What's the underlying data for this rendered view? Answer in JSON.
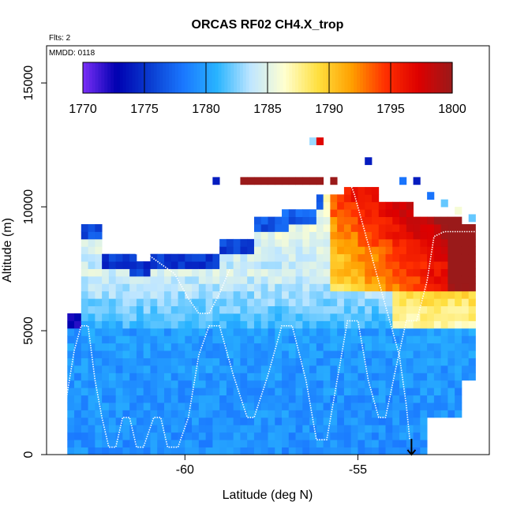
{
  "chart_data": {
    "type": "heatmap",
    "title": "ORCAS RF02 CH4.X_trop",
    "subtitle_flights": "Flts: 2",
    "subtitle_date": "MMDD: 0118",
    "xlabel": "Latitude (deg N)",
    "ylabel": "Altitude (m)",
    "xlim": [
      -64,
      -51.2
    ],
    "ylim": [
      0,
      16500
    ],
    "x_ticks": [
      -60,
      -55
    ],
    "x_tick_labels": [
      "-60",
      "-55"
    ],
    "y_ticks": [
      0,
      5000,
      10000,
      15000
    ],
    "y_tick_labels": [
      "0",
      "5000",
      "10000",
      "15000"
    ],
    "colorbar": {
      "range": [
        1770,
        1800
      ],
      "ticks": [
        1770,
        1775,
        1780,
        1785,
        1790,
        1795,
        1800
      ],
      "tick_labels": [
        "1770",
        "1775",
        "1780",
        "1785",
        "1790",
        "1795",
        "1800"
      ],
      "colors": [
        "#7b2ff7",
        "#0000b0",
        "#0a3cd0",
        "#1a78ff",
        "#29b4ff",
        "#bfe6ff",
        "#ffffd0",
        "#ffe040",
        "#ffa000",
        "#ff3000",
        "#dd0000",
        "#9a1a1a"
      ]
    },
    "grid": {
      "cell_lat_step": 0.2,
      "cell_alt_step": 300
    },
    "flight_track": {
      "color": "#ffffff",
      "points": [
        [
          -63.6,
          800
        ],
        [
          -63.4,
          2500
        ],
        [
          -63.2,
          4200
        ],
        [
          -63.0,
          5200
        ],
        [
          -62.8,
          5200
        ],
        [
          -62.6,
          3000
        ],
        [
          -62.4,
          1500
        ],
        [
          -62.2,
          300
        ],
        [
          -62.0,
          300
        ],
        [
          -61.8,
          1500
        ],
        [
          -61.6,
          1500
        ],
        [
          -61.4,
          300
        ],
        [
          -61.2,
          300
        ],
        [
          -60.9,
          1500
        ],
        [
          -60.7,
          1500
        ],
        [
          -60.5,
          300
        ],
        [
          -60.2,
          300
        ],
        [
          -59.9,
          1500
        ],
        [
          -59.6,
          4000
        ],
        [
          -59.3,
          5200
        ],
        [
          -59.0,
          5200
        ],
        [
          -58.6,
          3200
        ],
        [
          -58.2,
          1500
        ],
        [
          -58.0,
          1500
        ],
        [
          -57.6,
          3200
        ],
        [
          -57.2,
          5200
        ],
        [
          -56.9,
          5200
        ],
        [
          -56.5,
          3000
        ],
        [
          -56.2,
          600
        ],
        [
          -55.9,
          600
        ],
        [
          -55.6,
          3000
        ],
        [
          -55.3,
          5400
        ],
        [
          -55.0,
          5400
        ],
        [
          -54.7,
          3000
        ],
        [
          -54.4,
          1500
        ],
        [
          -54.2,
          1500
        ],
        [
          -53.9,
          3500
        ],
        [
          -53.6,
          5400
        ],
        [
          -53.3,
          5400
        ],
        [
          -53.0,
          7000
        ],
        [
          -52.8,
          8800
        ],
        [
          -52.5,
          9000
        ],
        [
          -52.2,
          9000
        ],
        [
          -51.6,
          9000
        ]
      ],
      "descent_points": [
        [
          -55.4,
          11600
        ],
        [
          -55.1,
          10500
        ],
        [
          -54.9,
          9500
        ],
        [
          -54.6,
          8000
        ],
        [
          -54.3,
          6500
        ],
        [
          -54.0,
          5000
        ],
        [
          -53.8,
          4000
        ],
        [
          -53.6,
          2000
        ],
        [
          -53.5,
          600
        ]
      ],
      "upper_points": [
        [
          -62.2,
          9200
        ],
        [
          -61.8,
          8600
        ],
        [
          -61.4,
          8100
        ],
        [
          -61.0,
          8000
        ],
        [
          -60.6,
          7600
        ],
        [
          -60.3,
          7300
        ],
        [
          -59.9,
          6300
        ],
        [
          -59.6,
          5700
        ],
        [
          -59.3,
          5700
        ],
        [
          -59.0,
          6500
        ],
        [
          -58.7,
          7500
        ]
      ]
    },
    "arrow_marker": {
      "lat": -53.45,
      "alt": 0,
      "symbol": "down-arrow"
    }
  }
}
